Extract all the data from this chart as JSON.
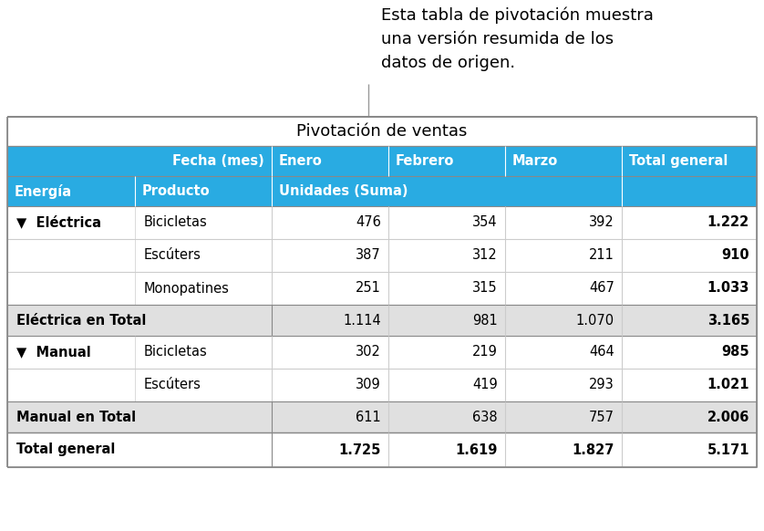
{
  "annotation_text": "Esta tabla de pivotación muestra\nuna versión resumida de los\ndatos de origen.",
  "title": "Pivotación de ventas",
  "header_blue": "#29ABE2",
  "subtotal_bg": "#E0E0E0",
  "data_bg": "#FFFFFF",
  "total_bg": "#FFFFFF",
  "fig_bg": "#FFFFFF",
  "border_dark": "#888888",
  "border_light": "#CCCCCC",
  "rows": [
    {
      "col0": "▼  Eléctrica",
      "col1": "Bicicletas",
      "col2": "476",
      "col3": "354",
      "col4": "392",
      "col5": "1.222",
      "type": "data"
    },
    {
      "col0": "",
      "col1": "Escúters",
      "col2": "387",
      "col3": "312",
      "col4": "211",
      "col5": "910",
      "type": "data"
    },
    {
      "col0": "",
      "col1": "Monopatines",
      "col2": "251",
      "col3": "315",
      "col4": "467",
      "col5": "1.033",
      "type": "data"
    },
    {
      "col0": "Eléctrica en Total",
      "col1": "",
      "col2": "1.114",
      "col3": "981",
      "col4": "1.070",
      "col5": "3.165",
      "type": "subtotal"
    },
    {
      "col0": "▼  Manual",
      "col1": "Bicicletas",
      "col2": "302",
      "col3": "219",
      "col4": "464",
      "col5": "985",
      "type": "data"
    },
    {
      "col0": "",
      "col1": "Escúters",
      "col2": "309",
      "col3": "419",
      "col4": "293",
      "col5": "1.021",
      "type": "data"
    },
    {
      "col0": "Manual en Total",
      "col1": "",
      "col2": "611",
      "col3": "638",
      "col4": "757",
      "col5": "2.006",
      "type": "subtotal"
    },
    {
      "col0": "Total general",
      "col1": "",
      "col2": "1.725",
      "col3": "1.619",
      "col4": "1.827",
      "col5": "5.171",
      "type": "total"
    }
  ]
}
